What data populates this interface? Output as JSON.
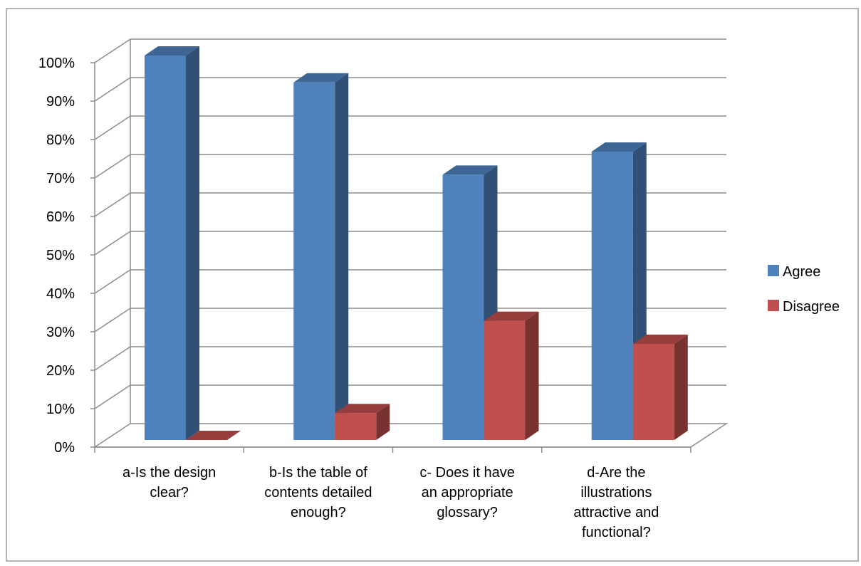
{
  "chart_data": {
    "type": "bar",
    "title": "",
    "xlabel": "",
    "ylabel": "",
    "ylim": [
      0,
      100
    ],
    "y_ticks": [
      "0%",
      "10%",
      "20%",
      "30%",
      "40%",
      "50%",
      "60%",
      "70%",
      "80%",
      "90%",
      "100%"
    ],
    "grid": true,
    "legend_position": "right",
    "categories": [
      [
        "a-Is the design",
        "clear?"
      ],
      [
        "b-Is the table of",
        "contents detailed",
        "enough?"
      ],
      [
        "c- Does it have",
        "an appropriate",
        "glossary?"
      ],
      [
        "d-Are the",
        "illustrations",
        "attractive and",
        "functional?"
      ]
    ],
    "series": [
      {
        "name": "Agree",
        "values": [
          100,
          93,
          69,
          75
        ],
        "color": "#4F81BD"
      },
      {
        "name": "Disagree",
        "values": [
          0,
          7,
          31,
          25
        ],
        "color": "#C0504D"
      }
    ]
  }
}
